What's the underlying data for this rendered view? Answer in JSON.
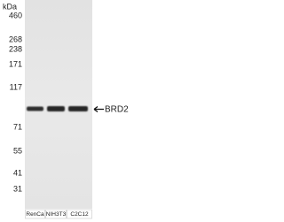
{
  "markers": {
    "unit": "kDa",
    "labels": [
      "460",
      "268",
      "238",
      "171",
      "117",
      "71",
      "55",
      "41",
      "31"
    ]
  },
  "lanes": [
    "RenCa",
    "NIH3T3",
    "C2C12"
  ],
  "band_label": "BRD2"
}
